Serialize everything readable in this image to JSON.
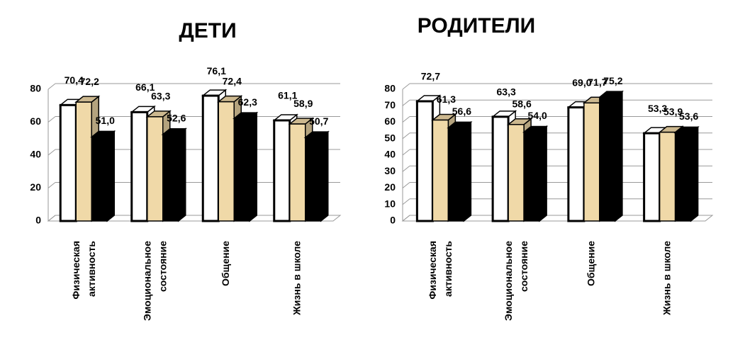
{
  "chart_data": [
    {
      "type": "bar3d",
      "title": "ДЕТИ",
      "categories": [
        [
          "Физическая",
          "активность"
        ],
        [
          "Эмоциональное",
          "состояние"
        ],
        [
          "Общение"
        ],
        [
          "Жизнь в школе"
        ]
      ],
      "series": [
        {
          "color": "#ffffff",
          "values": [
            70.4,
            66.1,
            76.1,
            61.1
          ],
          "value_labels": [
            "70,4",
            "66,1",
            "76,1",
            "61,1"
          ]
        },
        {
          "color": "#f0d9a8",
          "values": [
            72.2,
            63.3,
            72.4,
            58.9
          ],
          "value_labels": [
            "72,2",
            "63,3",
            "72,4",
            "58,9"
          ]
        },
        {
          "color": "#000000",
          "values": [
            51.0,
            52.6,
            62.3,
            50.7
          ],
          "value_labels": [
            "51,0",
            "52,6",
            "62,3",
            "50,7"
          ]
        }
      ],
      "ylim": [
        0,
        80
      ],
      "yticks": [
        0,
        20,
        40,
        60,
        80
      ],
      "grid": true
    },
    {
      "type": "bar3d",
      "title": "РОДИТЕЛИ",
      "categories": [
        [
          "Физическая",
          "активность"
        ],
        [
          "Эмоциональное",
          "состояние"
        ],
        [
          "Общение"
        ],
        [
          "Жизнь в школе"
        ]
      ],
      "series": [
        {
          "color": "#ffffff",
          "values": [
            72.7,
            63.3,
            69.0,
            53.3
          ],
          "value_labels": [
            "72,7",
            "63,3",
            "69,0",
            "53,3"
          ]
        },
        {
          "color": "#f0d9a8",
          "values": [
            61.3,
            58.6,
            71.7,
            53.9
          ],
          "value_labels": [
            "61,3",
            "58,6",
            "71,7",
            "53,9"
          ]
        },
        {
          "color": "#000000",
          "values": [
            56.6,
            54.0,
            75.2,
            53.6
          ],
          "value_labels": [
            "56,6",
            "54,0",
            "75,2",
            "53,6"
          ]
        }
      ],
      "ylim": [
        0,
        80
      ],
      "yticks": [
        0,
        10,
        20,
        30,
        40,
        50,
        60,
        70,
        80
      ],
      "grid": true
    }
  ]
}
